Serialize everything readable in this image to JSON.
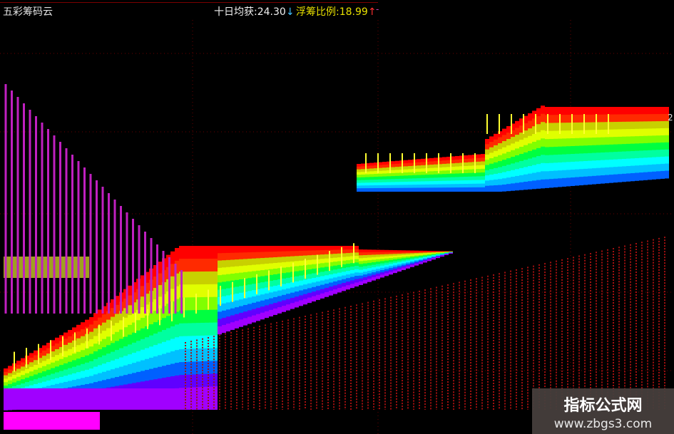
{
  "indicator": {
    "title": "五彩筹码云"
  },
  "readouts": [
    {
      "label": "十日均获:",
      "value": "24.30",
      "arrow": "↓"
    },
    {
      "label": "浮筹比例:",
      "value": "18.99",
      "arrow": "↑"
    }
  ],
  "right_edge_label": "2",
  "colors": {
    "background": "#000000",
    "grid": "#7a0000",
    "readout1": "#f0f0f0",
    "readout2": "#e8e000",
    "bands": [
      "#ff0000",
      "#ffff00",
      "#00ff40",
      "#00ffff",
      "#0060ff",
      "#a000ff",
      "#ff00ff"
    ]
  },
  "watermark": {
    "name": "指标公式网",
    "url": "www.zbgs3.com"
  }
}
